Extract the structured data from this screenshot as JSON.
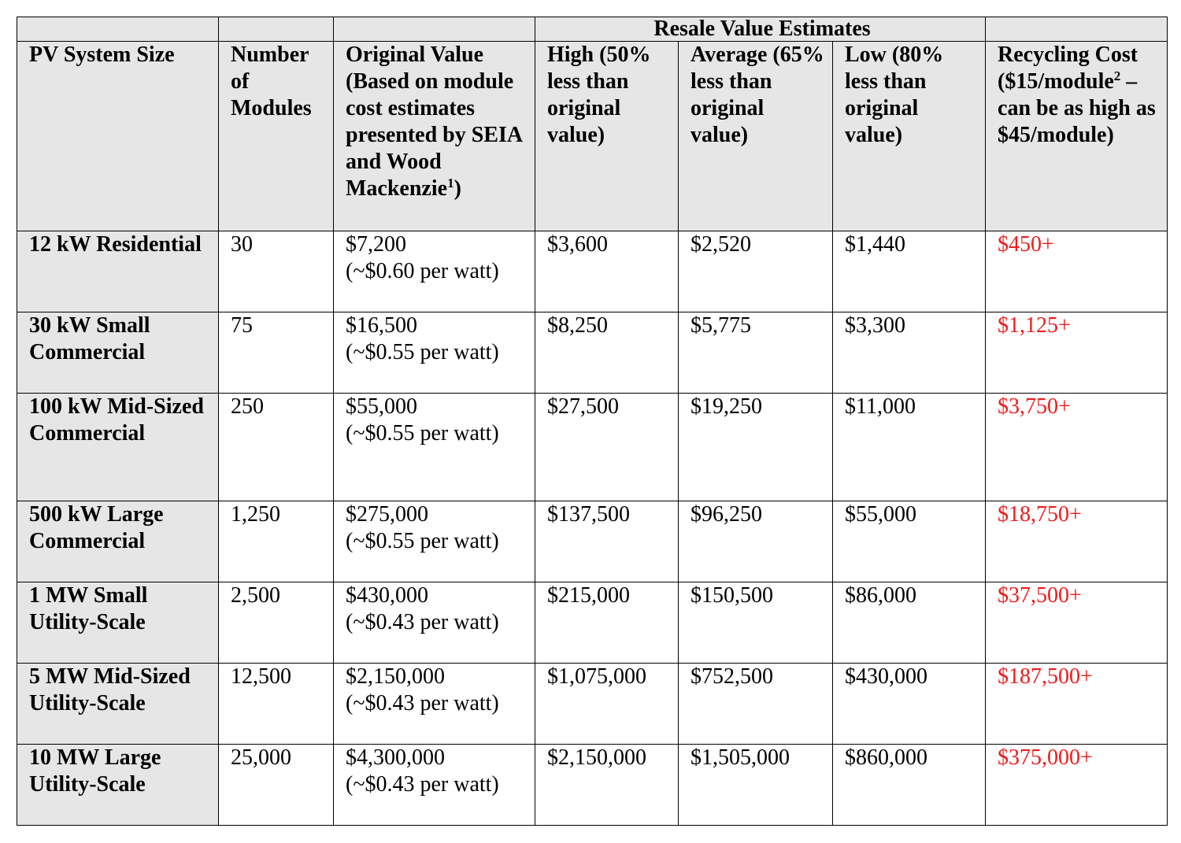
{
  "colors": {
    "header_shade": "#e7e6e6",
    "recycling_text": "#ee1c1c"
  },
  "group_header": "Resale Value Estimates",
  "headers": {
    "system_size": "PV System Size",
    "modules": "Number of Modules",
    "original_value": "Original Value (Based on module cost estimates presented by SEIA and Wood Mackenzie",
    "original_value_sup": "1",
    "original_value_end": ")",
    "high": "High (50% less than original value)",
    "average": "Average (65% less than original value)",
    "low": "Low (80% less than original value)",
    "recycling_a": "Recycling Cost ($15/module",
    "recycling_sup": "2",
    "recycling_b": " – can be as high as $45/module)"
  },
  "rows": [
    {
      "size": "12 kW Residential",
      "modules": "30",
      "original": "$7,200",
      "per_watt": "(~$0.60 per watt)",
      "high": "$3,600",
      "average": "$2,520",
      "low": "$1,440",
      "recycling": "$450+"
    },
    {
      "size": "30 kW Small Commercial",
      "modules": "75",
      "original": "$16,500",
      "per_watt": "(~$0.55 per watt)",
      "high": "$8,250",
      "average": "$5,775",
      "low": "$3,300",
      "recycling": "$1,125+"
    },
    {
      "size": "100 kW Mid-Sized Commercial",
      "modules": "250",
      "original": "$55,000",
      "per_watt": "(~$0.55 per watt)",
      "high": "$27,500",
      "average": "$19,250",
      "low": "$11,000",
      "recycling": "$3,750+"
    },
    {
      "size": "500 kW Large Commercial",
      "modules": "1,250",
      "original": "$275,000",
      "per_watt": "(~$0.55 per watt)",
      "high": "$137,500",
      "average": "$96,250",
      "low": "$55,000",
      "recycling": "$18,750+"
    },
    {
      "size": "1 MW Small Utility-Scale",
      "modules": "2,500",
      "original": "$430,000",
      "per_watt": "(~$0.43 per watt)",
      "high": "$215,000",
      "average": "$150,500",
      "low": "$86,000",
      "recycling": "$37,500+"
    },
    {
      "size": "5 MW Mid-Sized Utility-Scale",
      "modules": "12,500",
      "original": "$2,150,000",
      "per_watt": "(~$0.43 per watt)",
      "high": "$1,075,000",
      "average": "$752,500",
      "low": "$430,000",
      "recycling": "$187,500+"
    },
    {
      "size": "10 MW Large Utility-Scale",
      "modules": "25,000",
      "original": "$4,300,000",
      "per_watt": "(~$0.43 per watt)",
      "high": "$2,150,000",
      "average": "$1,505,000",
      "low": "$860,000",
      "recycling": "$375,000+"
    }
  ]
}
